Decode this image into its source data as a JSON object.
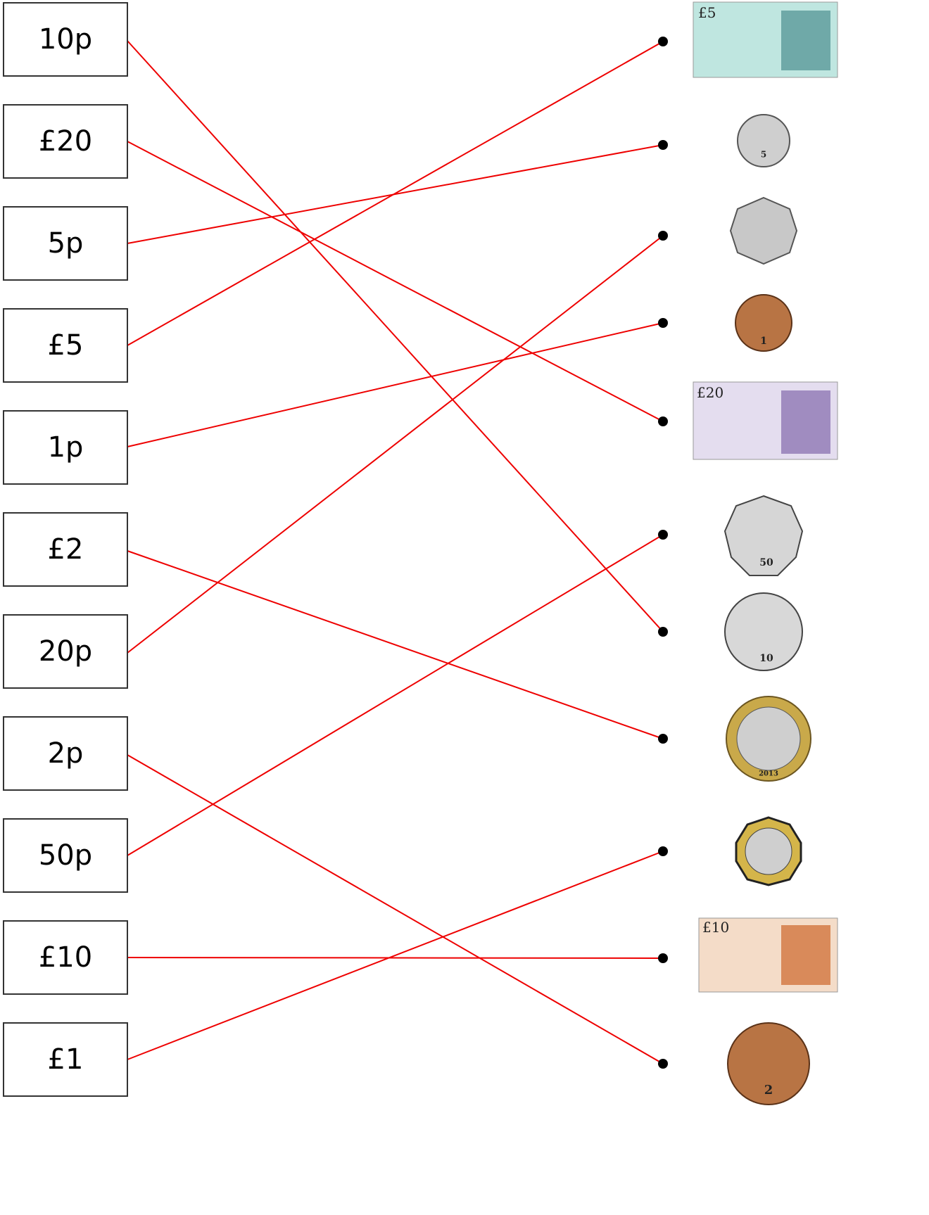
{
  "left": [
    "10p",
    "£20",
    "5p",
    "£5",
    "1p",
    "£2",
    "20p",
    "2p",
    "50p",
    "£10",
    "£1"
  ],
  "right": [
    "£5",
    "5",
    "",
    "1",
    "£20",
    "50",
    "10",
    "2013",
    "",
    "£10",
    "2"
  ]
}
